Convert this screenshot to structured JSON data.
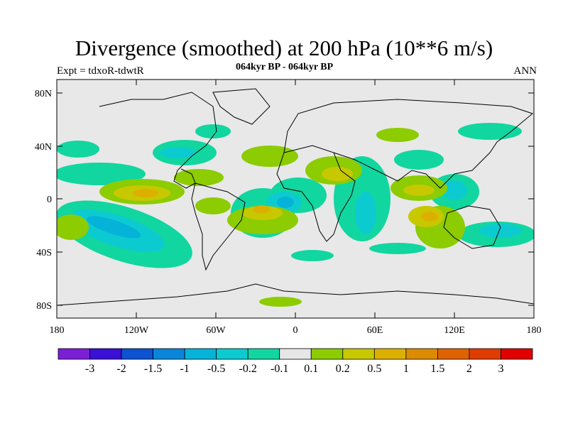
{
  "header": {
    "title": "Divergence (smoothed) at 200 hPa (10**6 m/s)",
    "left": "Expt = tdxoR-tdwtR",
    "center": "064kyr BP - 064kyr BP",
    "right": "ANN"
  },
  "map": {
    "lat_ticks": [
      "80N",
      "40N",
      "0",
      "40S",
      "80S"
    ],
    "lon_ticks": [
      "180",
      "120W",
      "60W",
      "0",
      "60E",
      "120E",
      "180"
    ],
    "background": "#e8e8e8"
  },
  "colorbar": {
    "colors": [
      "#7b1fd6",
      "#3a10d6",
      "#0c52d1",
      "#0a86d9",
      "#06b3d8",
      "#0ccbd0",
      "#11d6a0",
      "#e6e6e6",
      "#8ccc00",
      "#c8c800",
      "#dcb000",
      "#dc8a00",
      "#e06200",
      "#e03c00",
      "#e00000"
    ],
    "labels": [
      "-3",
      "-2",
      "-1.5",
      "-1",
      "-0.5",
      "-0.2",
      "-0.1",
      "0.1",
      "0.2",
      "0.5",
      "1",
      "1.5",
      "2",
      "3"
    ]
  }
}
